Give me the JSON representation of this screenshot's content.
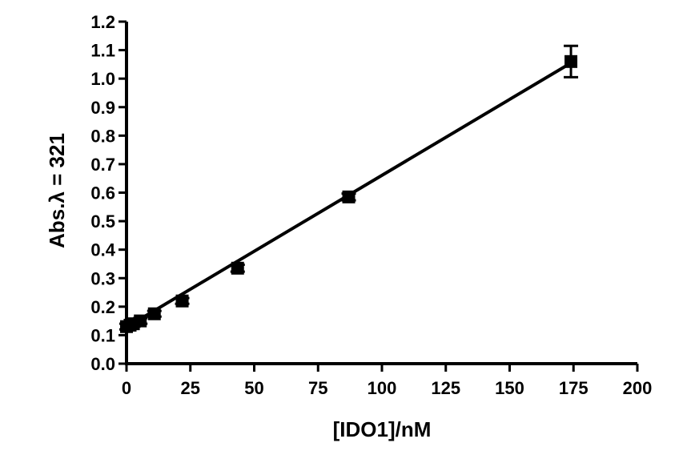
{
  "chart_data": {
    "type": "scatter",
    "title": "",
    "xlabel": "[IDO1]/nM",
    "ylabel": "Abs.λ = 321",
    "xlim": [
      0,
      200
    ],
    "ylim": [
      0,
      1.2
    ],
    "x_ticks": [
      "0",
      "25",
      "50",
      "75",
      "100",
      "125",
      "150",
      "175",
      "200"
    ],
    "y_ticks": [
      "0.0",
      "0.1",
      "0.2",
      "0.3",
      "0.4",
      "0.5",
      "0.6",
      "0.7",
      "0.8",
      "0.9",
      "1.0",
      "1.1",
      "1.2"
    ],
    "grid": false,
    "legend": "none",
    "series": [
      {
        "x": [
          0,
          1.4,
          2.7,
          5.4,
          10.9,
          21.8,
          43.5,
          87,
          174
        ],
        "y": [
          0.13,
          0.135,
          0.14,
          0.15,
          0.175,
          0.22,
          0.335,
          0.585,
          1.06
        ],
        "error": [
          0.01,
          0.01,
          0.01,
          0.01,
          0.01,
          0.01,
          0.012,
          0.012,
          0.055
        ],
        "marker": "square",
        "color": "#000000"
      }
    ],
    "fit_line": {
      "x": [
        0,
        174
      ],
      "y": [
        0.128,
        1.055
      ],
      "color": "#000000"
    }
  }
}
